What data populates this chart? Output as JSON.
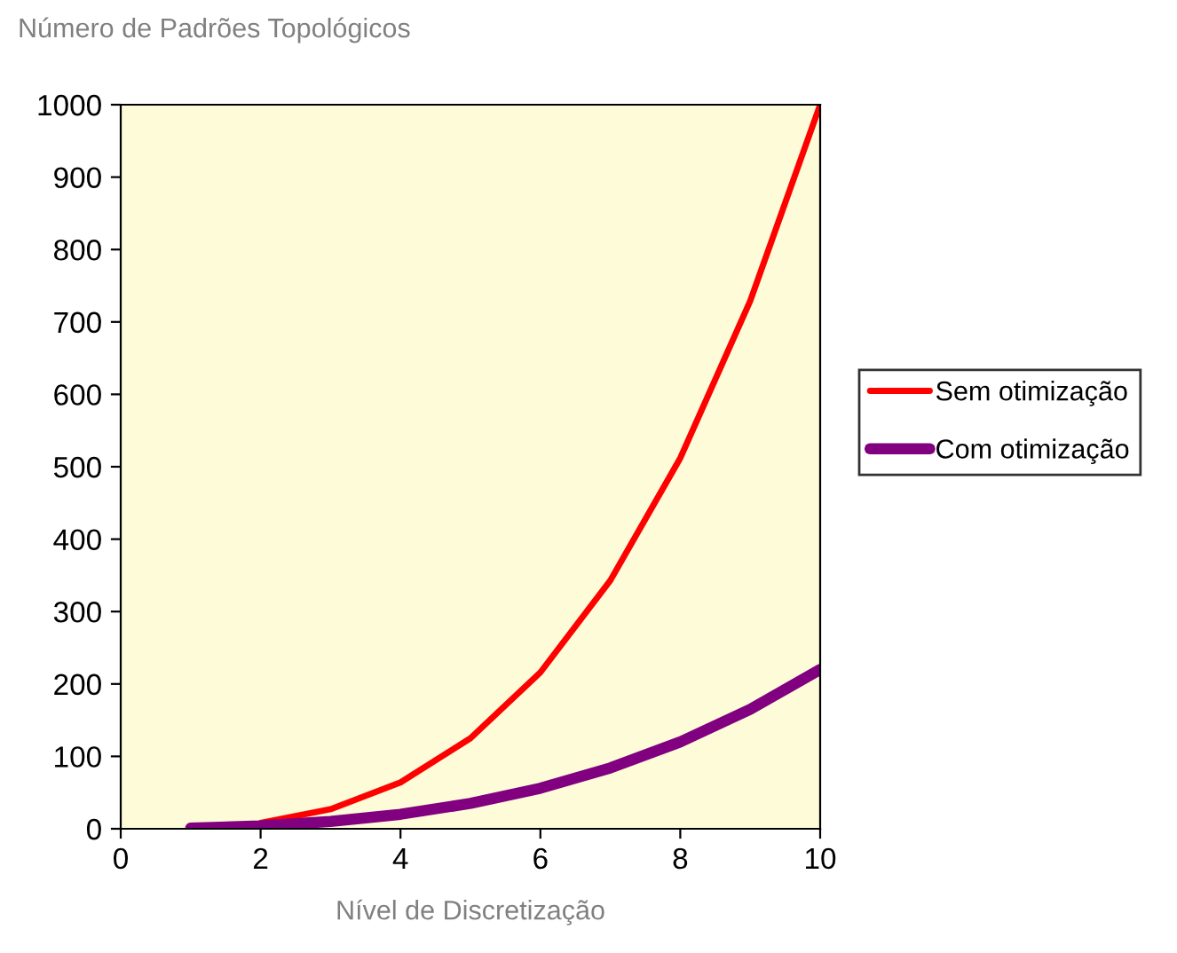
{
  "chart_data": {
    "type": "line",
    "title": "Número de Padrões Topológicos",
    "xlabel": "Nível de Discretização",
    "x": [
      1,
      2,
      3,
      4,
      5,
      6,
      7,
      8,
      9,
      10
    ],
    "series": [
      {
        "name": "Sem otimização",
        "color": "#ff0000",
        "values": [
          null,
          8,
          27,
          64,
          125,
          216,
          343,
          512,
          729,
          1000
        ]
      },
      {
        "name": "Com otimização",
        "color": "#800080",
        "values": [
          1,
          4,
          10,
          20,
          35,
          56,
          84,
          120,
          165,
          220
        ]
      }
    ],
    "xlim": [
      0,
      10
    ],
    "xticks": [
      0,
      2,
      4,
      6,
      8,
      10
    ],
    "ylim": [
      0,
      1000
    ],
    "yticks": [
      0,
      100,
      200,
      300,
      400,
      500,
      600,
      700,
      800,
      900,
      1000
    ],
    "grid": false,
    "legend": "right",
    "marker": "none",
    "line_style": "solid"
  }
}
